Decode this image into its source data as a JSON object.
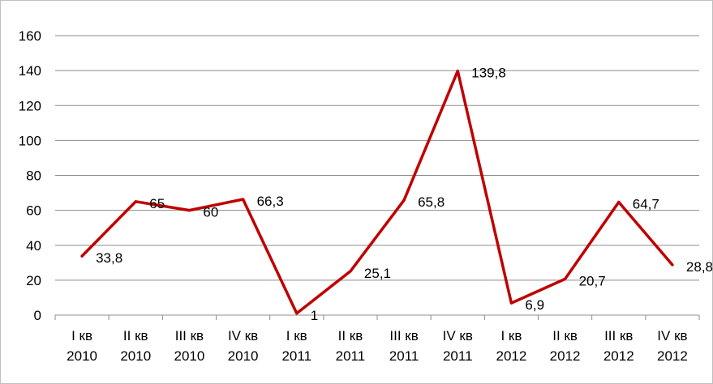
{
  "chart_data": {
    "type": "line",
    "categories": [
      [
        "I кв",
        "2010"
      ],
      [
        "II кв",
        "2010"
      ],
      [
        "III кв",
        "2010"
      ],
      [
        "IV кв",
        "2010"
      ],
      [
        "I кв",
        "2011"
      ],
      [
        "II кв",
        "2011"
      ],
      [
        "III кв",
        "2011"
      ],
      [
        "IV кв",
        "2011"
      ],
      [
        "I кв",
        "2012"
      ],
      [
        "II кв",
        "2012"
      ],
      [
        "III кв",
        "2012"
      ],
      [
        "IV кв",
        "2012"
      ]
    ],
    "series": [
      {
        "values": [
          33.8,
          65,
          60,
          66.3,
          1,
          25.1,
          65.8,
          139.8,
          6.9,
          20.7,
          64.7,
          28.8
        ],
        "data_labels": [
          "33,8",
          "65",
          "60",
          "66,3",
          "1",
          "25,1",
          "65,8",
          "139,8",
          "6,9",
          "20,7",
          "64,7",
          "28,8"
        ],
        "color": "#c00000"
      }
    ],
    "yticks": [
      "0",
      "20",
      "40",
      "60",
      "80",
      "100",
      "120",
      "140",
      "160"
    ],
    "ylim": [
      0,
      160
    ],
    "grid": true,
    "legend": "none",
    "title": "",
    "xlabel": "",
    "ylabel": ""
  }
}
